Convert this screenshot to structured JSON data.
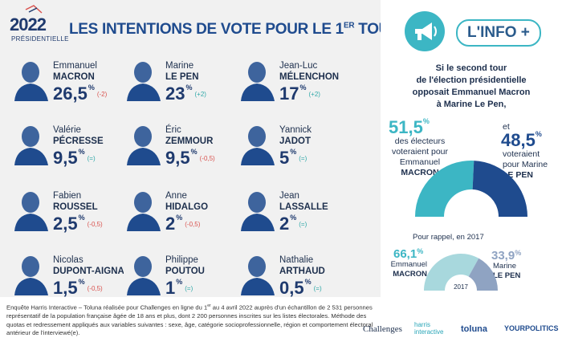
{
  "header": {
    "logo_year": "2022",
    "logo_sub": "PRÉSIDENTIELLE",
    "title": "LES INTENTIONS DE VOTE POUR LE 1",
    "title_sup": "ER",
    "title_end": " TOUR"
  },
  "chart_data": [
    {
      "type": "table",
      "candidates": [
        {
          "first": "Emmanuel",
          "last": "MACRON",
          "value": "26,5",
          "change": "(-2)",
          "trend": "neg"
        },
        {
          "first": "Marine",
          "last": "LE PEN",
          "value": "23",
          "change": "(+2)",
          "trend": "pos"
        },
        {
          "first": "Jean-Luc",
          "last": "MÉLENCHON",
          "value": "17",
          "change": "(+2)",
          "trend": "pos"
        },
        {
          "first": "Valérie",
          "last": "PÉCRESSE",
          "value": "9,5",
          "change": "(=)",
          "trend": "eq"
        },
        {
          "first": "Éric",
          "last": "ZEMMOUR",
          "value": "9,5",
          "change": "(-0,5)",
          "trend": "neg"
        },
        {
          "first": "Yannick",
          "last": "JADOT",
          "value": "5",
          "change": "(=)",
          "trend": "eq"
        },
        {
          "first": "Fabien",
          "last": "ROUSSEL",
          "value": "2,5",
          "change": "(-0,5)",
          "trend": "neg"
        },
        {
          "first": "Anne",
          "last": "HIDALGO",
          "value": "2",
          "change": "(-0,5)",
          "trend": "neg"
        },
        {
          "first": "Jean",
          "last": "LASSALLE",
          "value": "2",
          "change": "(=)",
          "trend": "eq"
        },
        {
          "first": "Nicolas",
          "last": "DUPONT-AIGNAN",
          "value": "1,5",
          "change": "(-0,5)",
          "trend": "neg"
        },
        {
          "first": "Philippe",
          "last": "POUTOU",
          "value": "1",
          "change": "(=)",
          "trend": "eq"
        },
        {
          "first": "Nathalie",
          "last": "ARTHAUD",
          "value": "0,5",
          "change": "(=)",
          "trend": "eq"
        }
      ]
    },
    {
      "type": "pie",
      "categories": [
        "MACRON",
        "LE PEN"
      ],
      "values": [
        51.5,
        48.5
      ],
      "colors": [
        "#3cb6c4",
        "#1f4b8e"
      ]
    },
    {
      "type": "pie",
      "categories": [
        "MACRON",
        "LE PEN"
      ],
      "values": [
        66.1,
        33.9
      ],
      "colors": [
        "#a8d8dd",
        "#8fa3c2"
      ],
      "center_label": "2017"
    }
  ],
  "info": {
    "badge": "L'INFO +",
    "question": [
      "Si le second tour",
      "de l'élection présidentielle",
      "opposait Emmanuel Macron",
      "à Marine Le Pen,"
    ],
    "macron_value": "51,5",
    "macron_desc": [
      "des électeurs",
      "voteraient pour",
      "Emmanuel"
    ],
    "macron_name": "MACRON",
    "connector": "et",
    "lepen_value": "48,5",
    "lepen_desc": [
      "voteraient",
      "pour Marine"
    ],
    "lepen_name": "LE PEN",
    "rappel": "Pour rappel, en 2017",
    "r_macron_value": "66,1",
    "r_macron_first": "Emmanuel",
    "r_macron_name": "MACRON",
    "r_lepen_value": "33,9",
    "r_lepen_first": "Marine",
    "r_lepen_name": "LE PEN",
    "year_label": "2017",
    "unit": "%"
  },
  "footnote": [
    "Enquête Harris Interactive – Toluna réalisée pour Challenges en ligne du 1",
    "er",
    " au 4 avril 2022 auprès d'un échantillon de 2 531 personnes représentatif de la population française âgée de 18 ans et plus, dont 2 200 personnes inscrites sur les listes électorales. Méthode des quotas et redressement appliqués aux variables suivantes : sexe, âge, catégorie socioprofessionnelle, région et comportement électoral antérieur de l'interviewé(e)."
  ],
  "logos": {
    "challenges": "Challenges",
    "harris": "harris interactive",
    "toluna": "toluna",
    "yourpolitics": "YOURPOLITICS"
  },
  "colors": {
    "navy": "#1f3a6e",
    "teal": "#3cb6c4",
    "red": "#d9534f",
    "blue": "#1f4b8e"
  }
}
